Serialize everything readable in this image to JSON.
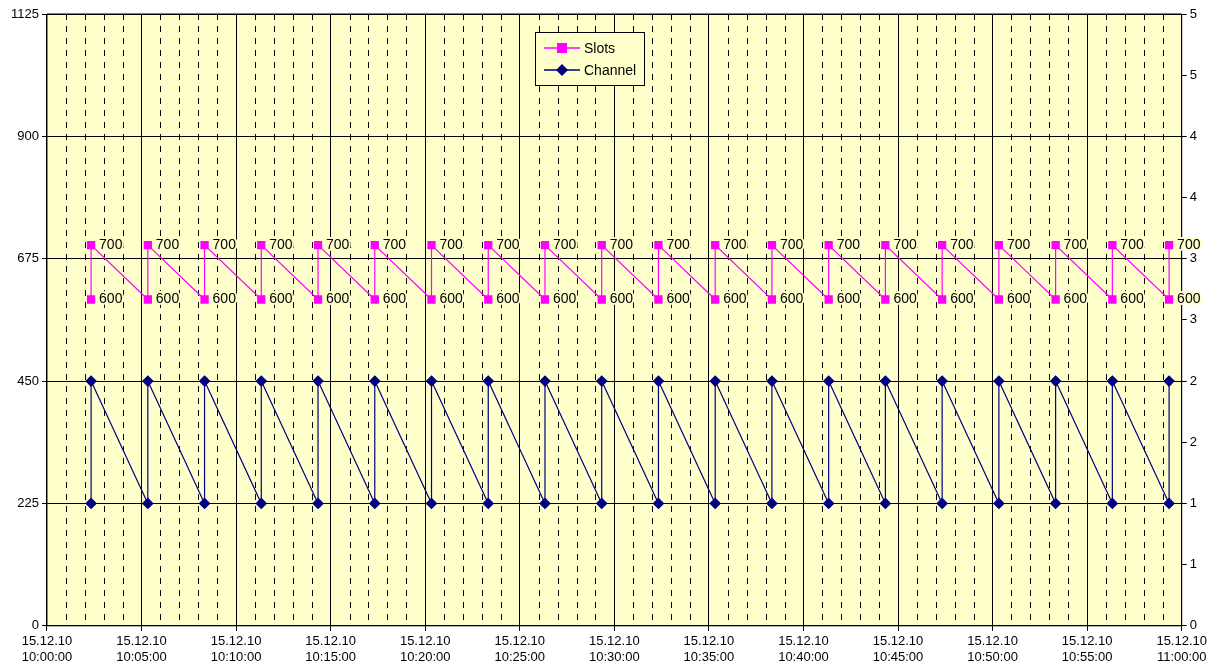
{
  "chart_data": {
    "type": "line",
    "x": [
      "--12-15T10:02:20",
      "--12-15T10:02:20",
      "--12-15T10:05:20",
      "--12-15T10:05:20",
      "--12-15T10:08:20",
      "--12-15T10:08:20",
      "--12-15T10:11:20",
      "--12-15T10:11:20",
      "--12-15T10:14:20",
      "--12-15T10:14:20",
      "--12-15T10:17:20",
      "--12-15T10:17:20",
      "--12-15T10:20:20",
      "--12-15T10:20:20",
      "--12-15T10:23:20",
      "--12-15T10:23:20",
      "--12-15T10:26:20",
      "--12-15T10:26:20",
      "--12-15T10:29:20",
      "--12-15T10:29:20",
      "--12-15T10:32:20",
      "--12-15T10:32:20",
      "--12-15T10:35:20",
      "--12-15T10:35:20",
      "--12-15T10:38:20",
      "--12-15T10:38:20",
      "--12-15T10:41:20",
      "--12-15T10:41:20",
      "--12-15T10:44:20",
      "--12-15T10:44:20",
      "--12-15T10:47:20",
      "--12-15T10:47:20",
      "--12-15T10:50:20",
      "--12-15T10:50:20",
      "--12-15T10:53:20",
      "--12-15T10:53:20",
      "--12-15T10:56:20",
      "--12-15T10:56:20",
      "--12-15T10:59:20",
      "--12-15T10:59:20"
    ],
    "series": [
      {
        "name": "Slots",
        "color": "#ff00ff",
        "marker": "square",
        "values": [
          600,
          700,
          600,
          700,
          600,
          700,
          600,
          700,
          600,
          700,
          600,
          700,
          600,
          700,
          600,
          700,
          600,
          700,
          600,
          700,
          600,
          700,
          600,
          700,
          600,
          700,
          600,
          700,
          600,
          700,
          600,
          700,
          600,
          700,
          600,
          700,
          600,
          700,
          600,
          700
        ],
        "value_labels": [
          "600",
          "700",
          "600",
          "700",
          "600",
          "700",
          "600",
          "700",
          "600",
          "700",
          "600",
          "700",
          "600",
          "700",
          "600",
          "700",
          "600",
          "700",
          "600",
          "700",
          "600",
          "700",
          "600",
          "700",
          "600",
          "700",
          "600",
          "700",
          "600",
          "700",
          "600",
          "700",
          "600",
          "700",
          "600",
          "700",
          "600",
          "700",
          "600",
          "700"
        ]
      },
      {
        "name": "Channel",
        "color": "#000080",
        "marker": "diamond",
        "axis": "y2",
        "values": [
          1,
          2,
          1,
          2,
          1,
          2,
          1,
          2,
          1,
          2,
          1,
          2,
          1,
          2,
          1,
          2,
          1,
          2,
          1,
          2,
          1,
          2,
          1,
          2,
          1,
          2,
          1,
          2,
          1,
          2,
          1,
          2,
          1,
          2,
          1,
          2,
          1,
          2,
          1,
          2
        ]
      }
    ],
    "xlim": [
      "--12-15T10:00",
      "--12-15T11:00"
    ],
    "xticks": [
      {
        "value": "--12-15T10:00",
        "label": "15.12.10 10:00:00"
      },
      {
        "value": "--12-15T10:01",
        "label": null
      },
      {
        "value": "--12-15T10:02",
        "label": null
      },
      {
        "value": "--12-15T10:03",
        "label": null
      },
      {
        "value": "--12-15T10:04",
        "label": null
      },
      {
        "value": "--12-15T10:05",
        "label": "15.12.10 10:05:00"
      },
      {
        "value": "--12-15T10:06",
        "label": null
      },
      {
        "value": "--12-15T10:07",
        "label": null
      },
      {
        "value": "--12-15T10:08",
        "label": null
      },
      {
        "value": "--12-15T10:09",
        "label": null
      },
      {
        "value": "--12-15T10:10",
        "label": "15.12.10 10:10:00"
      },
      {
        "value": "--12-15T10:11",
        "label": null
      },
      {
        "value": "--12-15T10:12",
        "label": null
      },
      {
        "value": "--12-15T10:13",
        "label": null
      },
      {
        "value": "--12-15T10:14",
        "label": null
      },
      {
        "value": "--12-15T10:15",
        "label": "15.12.10 10:15:00"
      },
      {
        "value": "--12-15T10:16",
        "label": null
      },
      {
        "value": "--12-15T10:17",
        "label": null
      },
      {
        "value": "--12-15T10:18",
        "label": null
      },
      {
        "value": "--12-15T10:19",
        "label": null
      },
      {
        "value": "--12-15T10:20",
        "label": "15.12.10 10:20:00"
      },
      {
        "value": "--12-15T10:21",
        "label": null
      },
      {
        "value": "--12-15T10:22",
        "label": null
      },
      {
        "value": "--12-15T10:23",
        "label": null
      },
      {
        "value": "--12-15T10:24",
        "label": null
      },
      {
        "value": "--12-15T10:25",
        "label": "15.12.10 10:25:00"
      },
      {
        "value": "--12-15T10:26",
        "label": null
      },
      {
        "value": "--12-15T10:27",
        "label": null
      },
      {
        "value": "--12-15T10:28",
        "label": null
      },
      {
        "value": "--12-15T10:29",
        "label": null
      },
      {
        "value": "--12-15T10:30",
        "label": "15.12.10 10:30:00"
      },
      {
        "value": "--12-15T10:31",
        "label": null
      },
      {
        "value": "--12-15T10:32",
        "label": null
      },
      {
        "value": "--12-15T10:33",
        "label": null
      },
      {
        "value": "--12-15T10:34",
        "label": null
      },
      {
        "value": "--12-15T10:35",
        "label": "15.12.10 10:35:00"
      },
      {
        "value": "--12-15T10:36",
        "label": null
      },
      {
        "value": "--12-15T10:37",
        "label": null
      },
      {
        "value": "--12-15T10:38",
        "label": null
      },
      {
        "value": "--12-15T10:39",
        "label": null
      },
      {
        "value": "--12-15T10:40",
        "label": "15.12.10 10:40:00"
      },
      {
        "value": "--12-15T10:41",
        "label": null
      },
      {
        "value": "--12-15T10:42",
        "label": null
      },
      {
        "value": "--12-15T10:43",
        "label": null
      },
      {
        "value": "--12-15T10:44",
        "label": null
      },
      {
        "value": "--12-15T10:45",
        "label": "15.12.10 10:45:00"
      },
      {
        "value": "--12-15T10:46",
        "label": null
      },
      {
        "value": "--12-15T10:47",
        "label": null
      },
      {
        "value": "--12-15T10:48",
        "label": null
      },
      {
        "value": "--12-15T10:49",
        "label": null
      },
      {
        "value": "--12-15T10:50",
        "label": "15.12.10 10:50:00"
      },
      {
        "value": "--12-15T10:51",
        "label": null
      },
      {
        "value": "--12-15T10:52",
        "label": null
      },
      {
        "value": "--12-15T10:53",
        "label": null
      },
      {
        "value": "--12-15T10:54",
        "label": null
      },
      {
        "value": "--12-15T10:55",
        "label": "15.12.10 10:55:00"
      },
      {
        "value": "--12-15T10:56",
        "label": null
      },
      {
        "value": "--12-15T10:57",
        "label": null
      },
      {
        "value": "--12-15T10:58",
        "label": null
      },
      {
        "value": "--12-15T10:59",
        "label": null
      },
      {
        "value": "--12-15T11:00",
        "label": "15.12.10 11:00:00"
      }
    ],
    "ylim": [
      0,
      1125
    ],
    "yticks": [
      0,
      225,
      450,
      675,
      900,
      1125
    ],
    "y2lim": [
      0,
      5
    ],
    "y2ticks": [
      0,
      {
        "value": 0.5,
        "label": "1"
      },
      1,
      {
        "value": 1.5,
        "label": "2"
      },
      2,
      {
        "value": 2.5,
        "label": "3"
      },
      3,
      {
        "value": 3.5,
        "label": "4"
      },
      4,
      {
        "value": 4.5,
        "label": "5"
      },
      5
    ],
    "grid": true,
    "legend": "top",
    "line_style": "solid"
  }
}
